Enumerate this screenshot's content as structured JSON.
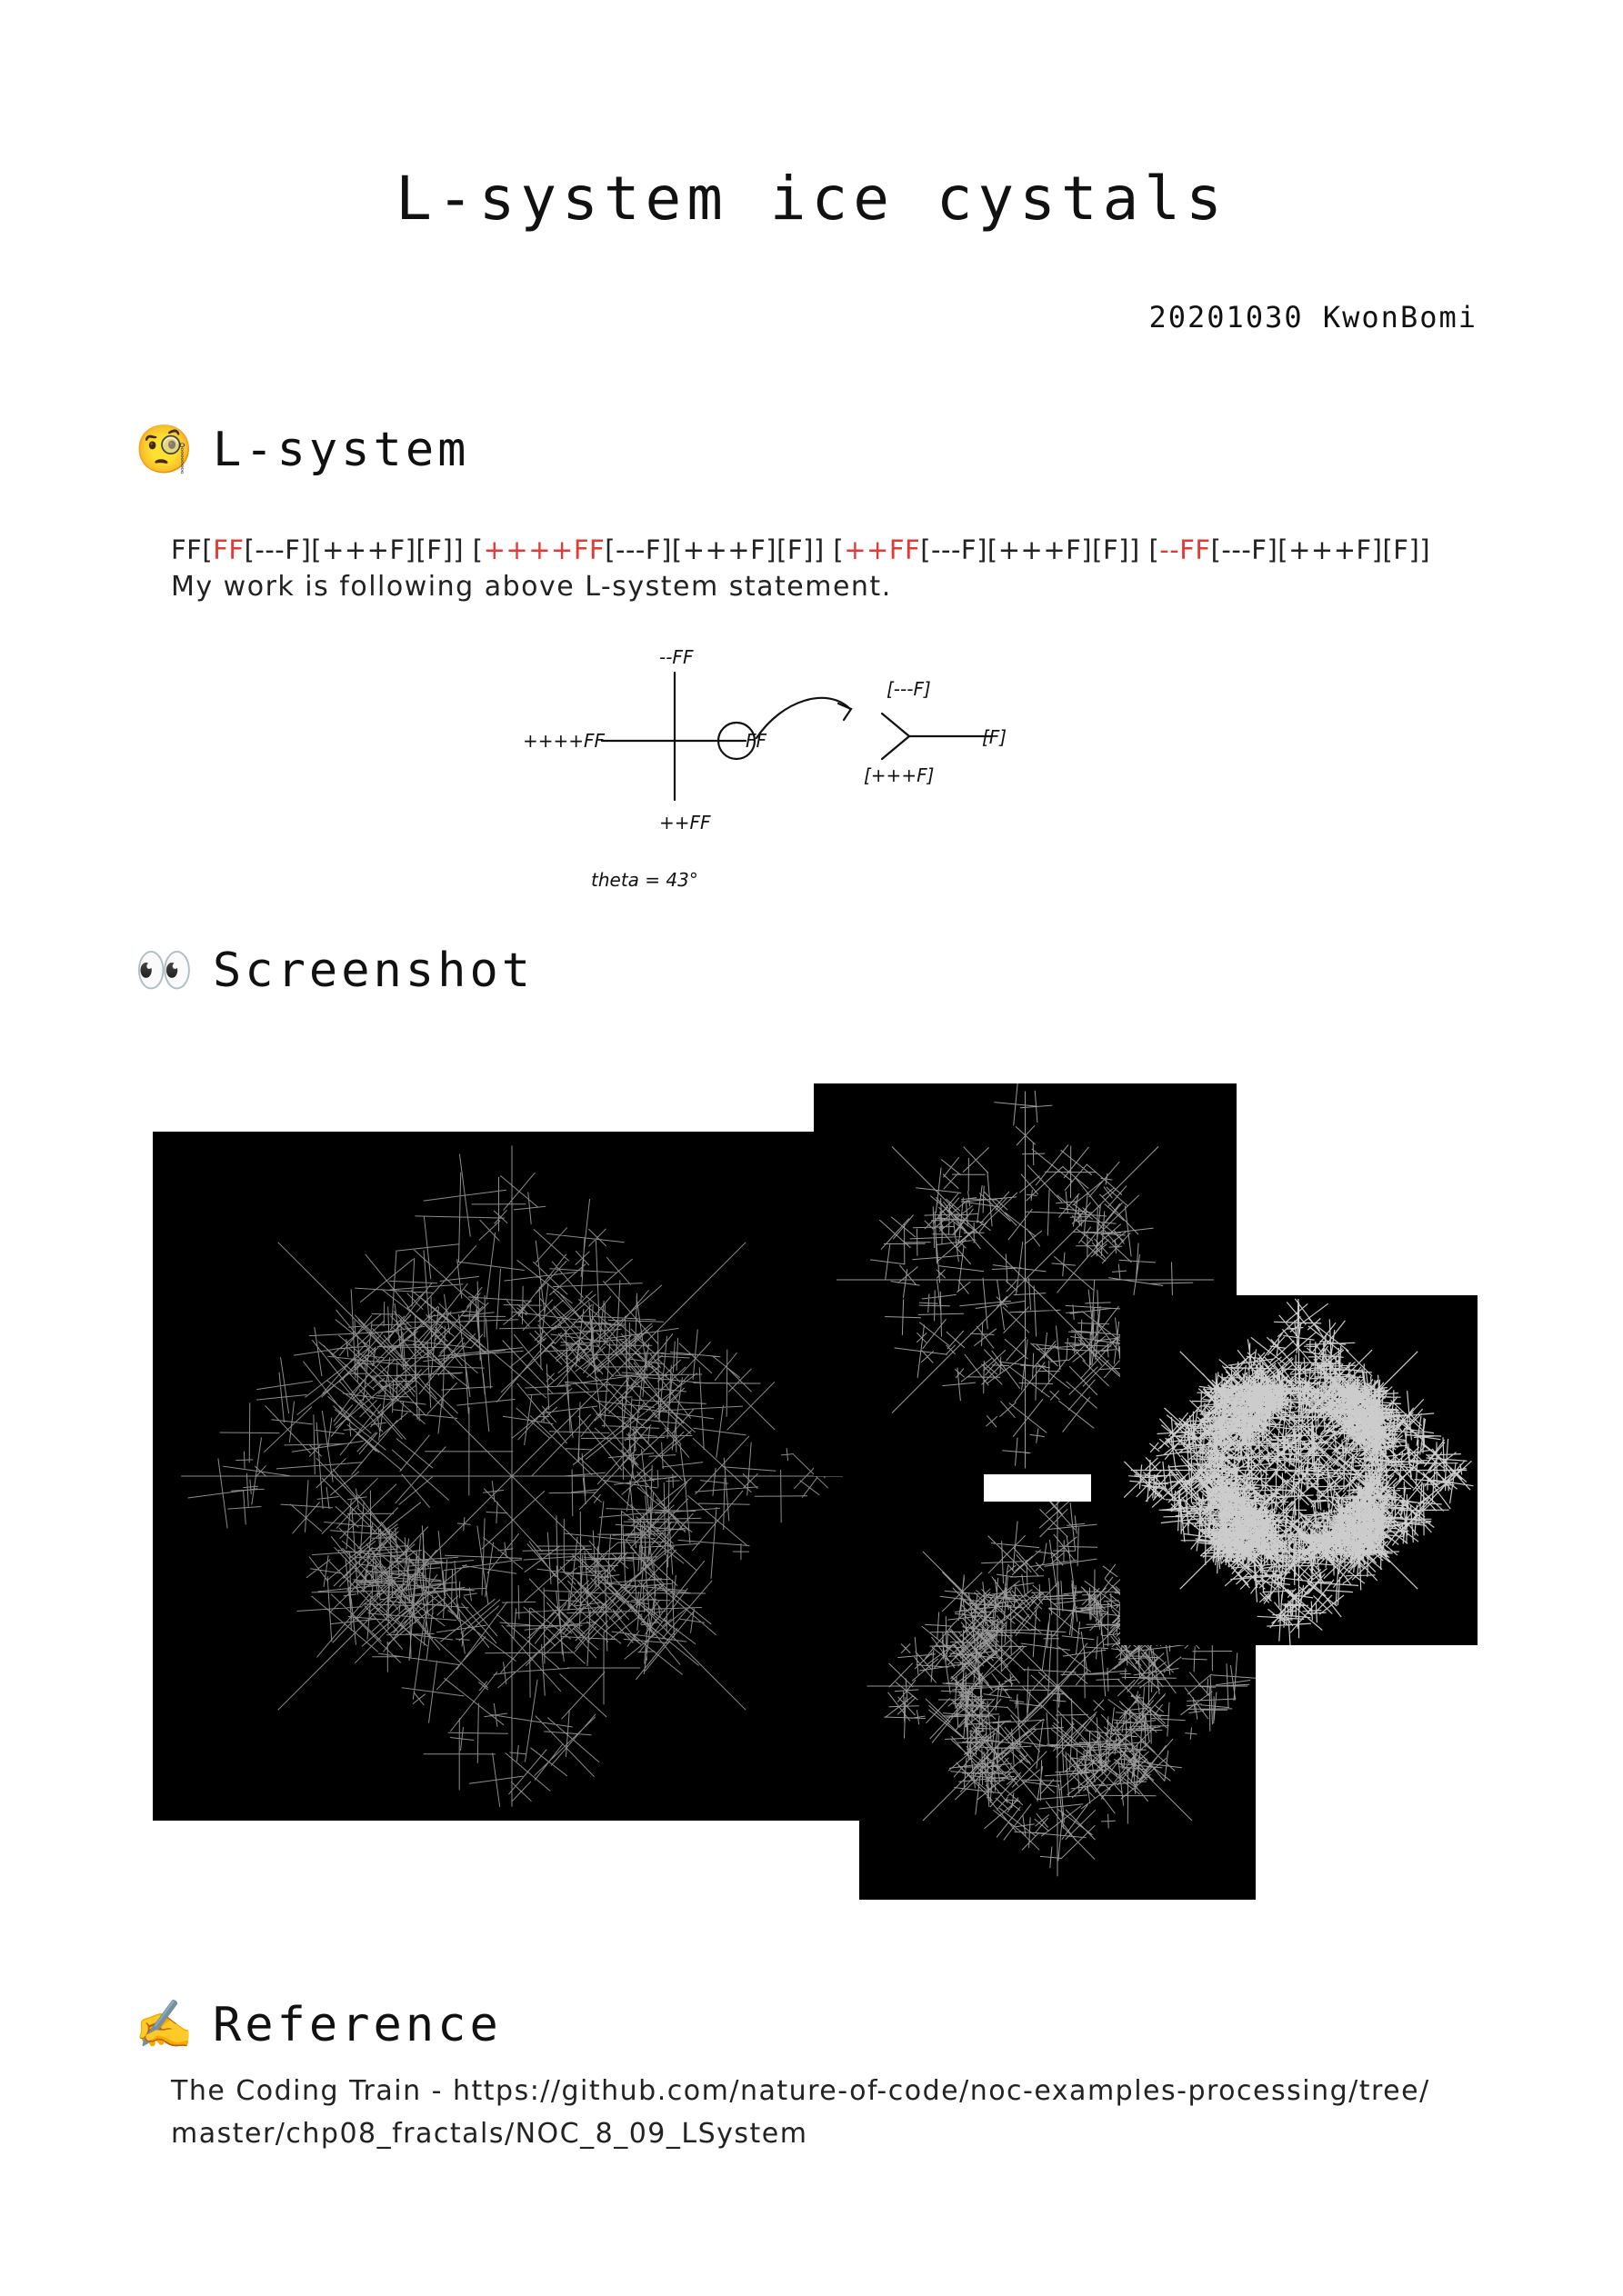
{
  "title": "L-system ice cystals",
  "author": "20201030 KwonBomi",
  "sections": {
    "lsystem": {
      "emoji": "🧐",
      "heading": "L-system",
      "rule_parts": [
        {
          "text": "FF[",
          "red": false
        },
        {
          "text": "FF",
          "red": true
        },
        {
          "text": "[---F][+++F][F]] [",
          "red": false
        },
        {
          "text": "++++FF",
          "red": true
        },
        {
          "text": "[---F][+++F][F]] [",
          "red": false
        },
        {
          "text": "++FF",
          "red": true
        },
        {
          "text": "[---F][+++F][F]] [",
          "red": false
        },
        {
          "text": "--FF",
          "red": true
        },
        {
          "text": "[---F][+++F][F]]",
          "red": false
        }
      ],
      "description": "My work is following above L-system statement.",
      "sketch": {
        "top_label": "--FF",
        "left_label": "++++FF",
        "right_label": "FF",
        "bottom_label": "++FF",
        "theta_label": "theta = 43°",
        "branch_top": "[---F]",
        "branch_right": "[F]",
        "branch_bottom": "[+++F]"
      }
    },
    "screenshot": {
      "emoji": "👀",
      "heading": "Screenshot"
    },
    "reference": {
      "emoji": "✍️",
      "heading": "Reference",
      "line1": "The Coding Train - https://github.com/nature-of-code/noc-examples-processing/tree/",
      "line2": "master/chp08_fractals/NOC_8_09_LSystem"
    }
  },
  "colors": {
    "highlight": "#e53935",
    "canvas_bg": "#000000",
    "line": "#ffffff"
  }
}
